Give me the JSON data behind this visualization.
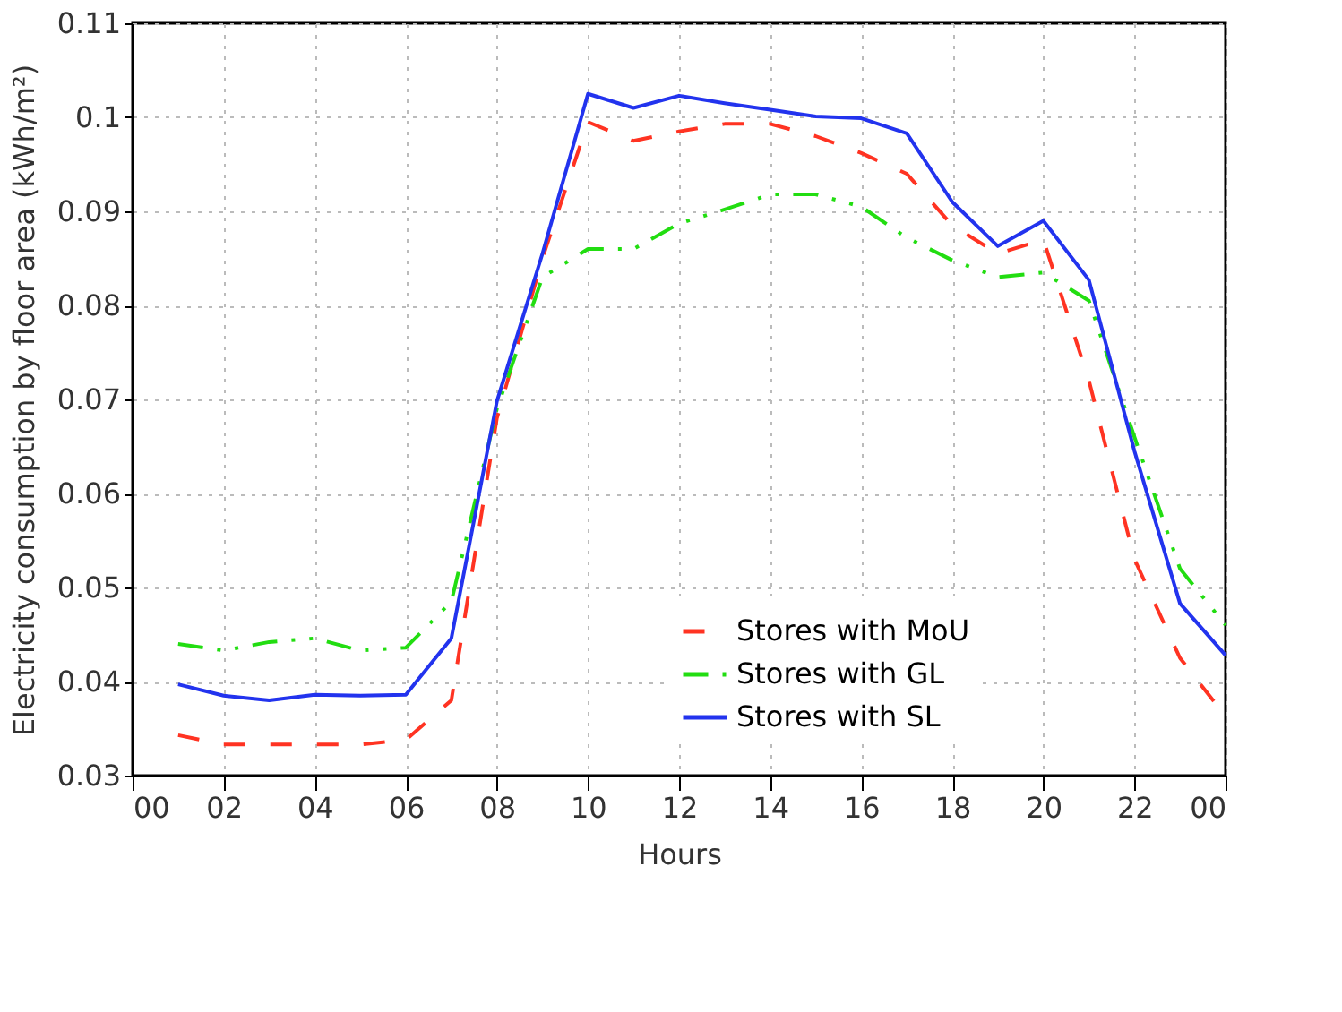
{
  "chart_data": {
    "type": "line",
    "xlabel": "Hours",
    "ylabel": "Electricity consumption by floor area (kWh/m²)",
    "x": [
      1,
      2,
      3,
      4,
      5,
      6,
      7,
      8,
      9,
      10,
      11,
      12,
      13,
      14,
      15,
      16,
      17,
      18,
      19,
      20,
      21,
      22,
      23,
      24
    ],
    "series": [
      {
        "name": "Stores with MoU",
        "color": "#ff3322",
        "line_style": "dashed",
        "values": [
          0.0343,
          0.0333,
          0.0333,
          0.0333,
          0.0333,
          0.0338,
          0.038,
          0.068,
          0.085,
          0.0995,
          0.0975,
          0.0985,
          0.0993,
          0.0993,
          0.098,
          0.0962,
          0.094,
          0.0885,
          0.0855,
          0.087,
          0.072,
          0.053,
          0.0425,
          0.0363
        ]
      },
      {
        "name": "Stores with GL",
        "color": "#22dd11",
        "line_style": "dotted",
        "values": [
          0.044,
          0.0433,
          0.0442,
          0.0446,
          0.0433,
          0.0436,
          0.0485,
          0.069,
          0.083,
          0.086,
          0.086,
          0.0887,
          0.0902,
          0.0918,
          0.0918,
          0.0905,
          0.0872,
          0.0848,
          0.083,
          0.0835,
          0.0805,
          0.066,
          0.052,
          0.046
        ]
      },
      {
        "name": "Stores with SL",
        "color": "#2233ee",
        "line_style": "solid",
        "values": [
          0.0397,
          0.0385,
          0.038,
          0.0386,
          0.0385,
          0.0386,
          0.0446,
          0.0698,
          0.0855,
          0.1025,
          0.101,
          0.1023,
          0.1015,
          0.1008,
          0.1001,
          0.0999,
          0.0983,
          0.091,
          0.0863,
          0.089,
          0.0827,
          0.0645,
          0.0483,
          0.0428
        ]
      }
    ],
    "xlim": [
      0,
      24
    ],
    "xticks": [
      {
        "value": 0,
        "label": "00"
      },
      {
        "value": 2,
        "label": "02"
      },
      {
        "value": 4,
        "label": "04"
      },
      {
        "value": 6,
        "label": "06"
      },
      {
        "value": 8,
        "label": "08"
      },
      {
        "value": 10,
        "label": "10"
      },
      {
        "value": 12,
        "label": "12"
      },
      {
        "value": 14,
        "label": "14"
      },
      {
        "value": 16,
        "label": "16"
      },
      {
        "value": 18,
        "label": "18"
      },
      {
        "value": 20,
        "label": "20"
      },
      {
        "value": 22,
        "label": "22"
      },
      {
        "value": 24,
        "label": "00"
      }
    ],
    "ylim": [
      0.03,
      0.11
    ],
    "yticks": [
      0.03,
      0.04,
      0.05,
      0.06,
      0.07,
      0.08,
      0.09,
      {
        "value": 0.1,
        "label": "0.1"
      },
      0.11
    ],
    "grid": true,
    "legend": "bottom right",
    "marker": "none"
  }
}
